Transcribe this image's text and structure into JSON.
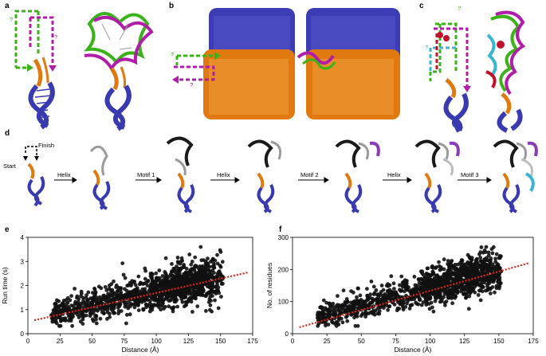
{
  "panels": {
    "a": "a",
    "b": "b",
    "c": "c",
    "d": "d",
    "e": "e",
    "f": "f"
  },
  "row_a": {
    "question_marks": [
      "?",
      "?"
    ]
  },
  "row_b": {
    "question_marks": [
      "?",
      "?"
    ]
  },
  "row_c": {
    "question_marks": [
      "?",
      "?"
    ]
  },
  "pipeline": {
    "start": "Start",
    "finish": "Finish",
    "steps": [
      "Helix",
      "Motif 1",
      "Helix",
      "Motif 2",
      "Helix",
      "Motif 3"
    ]
  },
  "colors": {
    "helix_blue": "#3a3ab0",
    "motif_orange": "#e07a10",
    "green": "#3cb21a",
    "magenta": "#b01ea8",
    "cyan": "#39b5d2",
    "red": "#c0122a",
    "gray": "#8a8a8a",
    "purple": "#8a3cb8",
    "dot": "#111111",
    "fit": "#e0261b"
  },
  "chart_data": [
    {
      "type": "scatter",
      "panel": "e",
      "xlabel": "Distance (Å)",
      "ylabel": "Run time (s)",
      "xlim": [
        0,
        175
      ],
      "ylim": [
        0,
        4
      ],
      "xticks": [
        "0",
        "25",
        "50",
        "75",
        "100",
        "125",
        "150",
        "175"
      ],
      "yticks": [
        "0",
        "1",
        "2",
        "3",
        "4"
      ],
      "trend_line": {
        "x": [
          5,
          172
        ],
        "y": [
          0.56,
          2.55
        ]
      },
      "n_points": 1400,
      "point_cloud": {
        "x_range": [
          18,
          152
        ],
        "y_at_x20": 0.8,
        "y_at_x150": 2.35
      }
    },
    {
      "type": "scatter",
      "panel": "f",
      "xlabel": "Distance (Å)",
      "ylabel": "No. of residues",
      "xlim": [
        0,
        175
      ],
      "ylim": [
        0,
        300
      ],
      "xticks": [
        "0",
        "25",
        "50",
        "75",
        "100",
        "125",
        "150",
        "175"
      ],
      "yticks": [
        "0",
        "100",
        "200",
        "300"
      ],
      "trend_line": {
        "x": [
          5,
          172
        ],
        "y": [
          20,
          220
        ]
      },
      "n_points": 1400,
      "point_cloud": {
        "x_range": [
          18,
          152
        ],
        "y_at_x20": 50,
        "y_at_x150": 200
      }
    }
  ]
}
